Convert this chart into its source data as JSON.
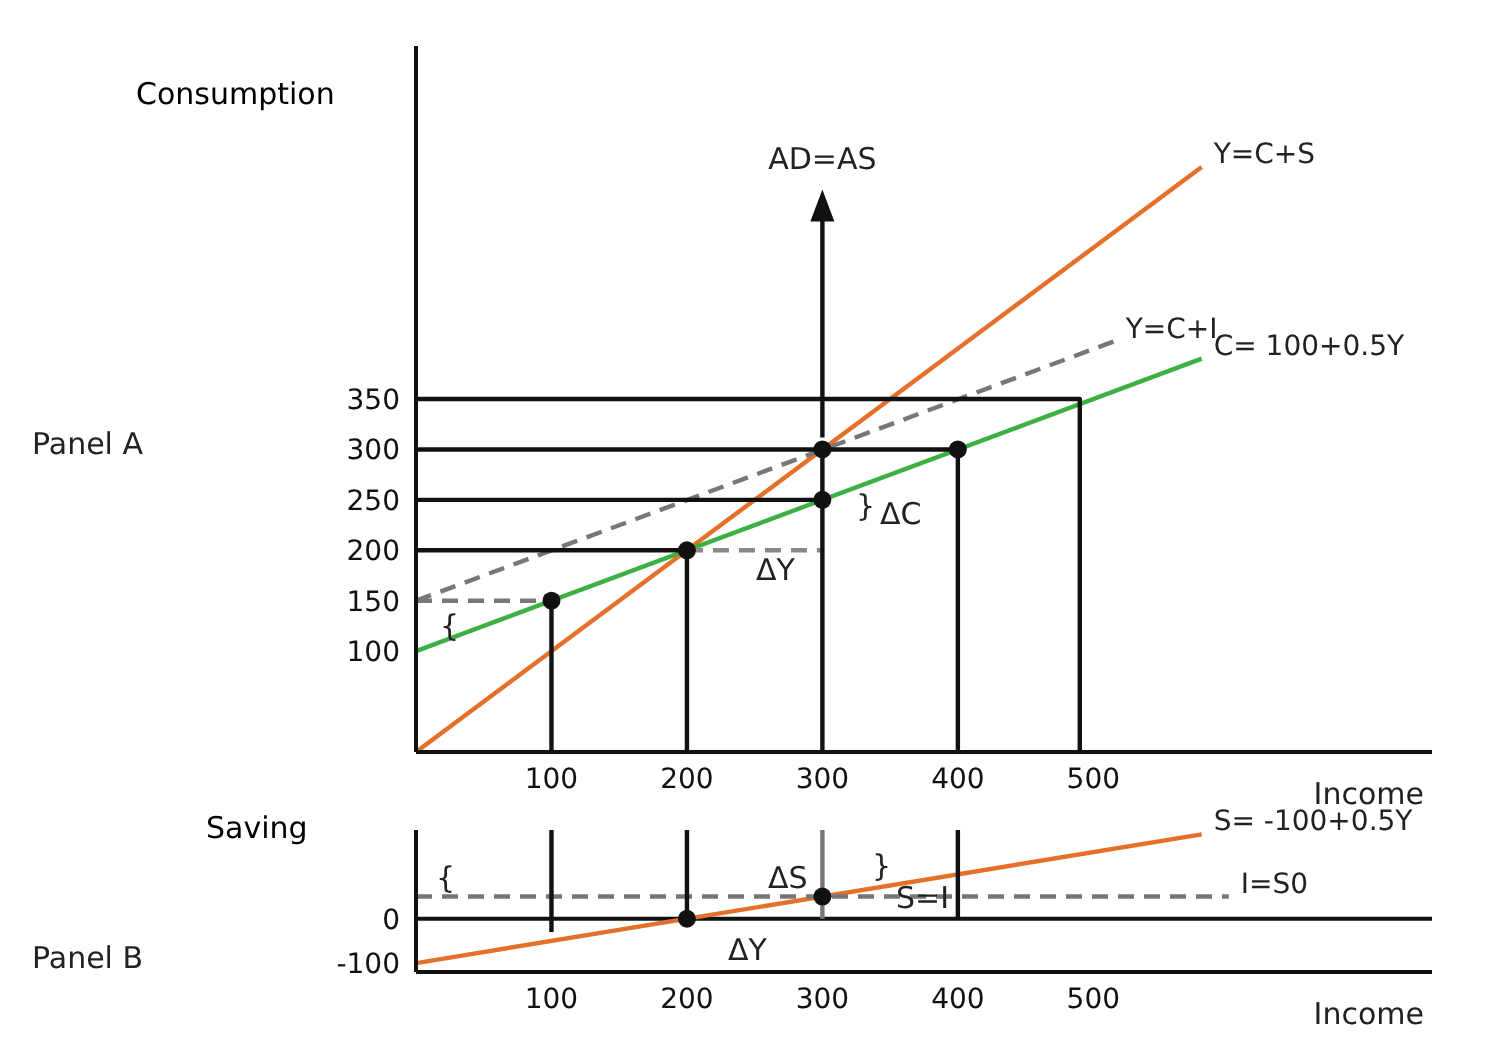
{
  "chart_data": [
    {
      "type": "line",
      "ylabel": "Consumption",
      "xlabel": "Income",
      "xlim": [
        0,
        750
      ],
      "ylim": [
        0,
        700
      ],
      "xticks": [
        100,
        200,
        300,
        400,
        500
      ],
      "yticks": [
        100,
        150,
        200,
        250,
        300,
        350
      ],
      "series": [
        {
          "name": "Y=C+S",
          "color": "#e5702a",
          "x": [
            0,
            580
          ],
          "values": [
            0,
            580
          ]
        },
        {
          "name": "Y=C+I",
          "color": "#777777",
          "line_style": "dashed",
          "x": [
            0,
            515
          ],
          "values": [
            150,
            407
          ]
        },
        {
          "name": "C= 100+0.5Y",
          "color": "#3cb043",
          "x": [
            0,
            580
          ],
          "values": [
            100,
            390
          ]
        },
        {
          "color": "#111111",
          "x": [
            0,
            490,
            490
          ],
          "values": [
            350,
            350,
            0
          ]
        },
        {
          "color": "#111111",
          "x": [
            0,
            400
          ],
          "values": [
            300,
            300
          ]
        },
        {
          "color": "#111111",
          "x": [
            0,
            300
          ],
          "values": [
            250,
            250
          ]
        },
        {
          "color": "#111111",
          "x": [
            0,
            200
          ],
          "values": [
            200,
            200
          ]
        },
        {
          "color": "#888888",
          "line_style": "dashed",
          "x": [
            200,
            300
          ],
          "values": [
            200,
            200
          ]
        },
        {
          "color": "#777777",
          "line_style": "dashed",
          "x": [
            0,
            100
          ],
          "values": [
            150,
            150
          ]
        },
        {
          "color": "#111111",
          "x": [
            100,
            100
          ],
          "values": [
            150,
            0
          ]
        },
        {
          "color": "#111111",
          "x": [
            200,
            200
          ],
          "values": [
            200,
            0
          ]
        },
        {
          "color": "#111111",
          "x": [
            300,
            300
          ],
          "values": [
            0,
            300
          ]
        },
        {
          "color": "#111111",
          "x": [
            400,
            400
          ],
          "values": [
            300,
            0
          ]
        },
        {
          "type": "scatter",
          "marker": "circle",
          "color": "#111111",
          "x": [
            100,
            200,
            300,
            300,
            400
          ],
          "values": [
            150,
            200,
            300,
            250,
            300
          ]
        }
      ],
      "annotations": [
        "Panel A",
        {
          "text": "AD=AS",
          "x": 300,
          "y": 300
        },
        "ΔC",
        "ΔY",
        "}",
        "{"
      ]
    },
    {
      "type": "line",
      "ylabel": "Saving",
      "xlabel": "Income",
      "xlim": [
        0,
        750
      ],
      "ylim": [
        -120,
        200
      ],
      "xticks": [
        100,
        200,
        300,
        400,
        500
      ],
      "yticks": [
        -100,
        0
      ],
      "ref_lines": [
        {
          "axis": "y",
          "value": 0,
          "color": "#111111"
        }
      ],
      "series": [
        {
          "name": "S= -100+0.5Y",
          "color": "#e5702a",
          "x": [
            0,
            580
          ],
          "values": [
            -100,
            190
          ]
        },
        {
          "name": "I=S0",
          "color": "#777777",
          "line_style": "dashed",
          "x": [
            0,
            600
          ],
          "values": [
            50,
            50
          ]
        },
        {
          "color": "#111111",
          "x": [
            100,
            100
          ],
          "values": [
            -30,
            200
          ]
        },
        {
          "color": "#111111",
          "x": [
            200,
            200
          ],
          "values": [
            0,
            200
          ]
        },
        {
          "color": "#777777",
          "x": [
            300,
            300
          ],
          "values": [
            0,
            200
          ]
        },
        {
          "color": "#111111",
          "x": [
            400,
            400
          ],
          "values": [
            0,
            200
          ]
        },
        {
          "type": "scatter",
          "marker": "circle",
          "color": "#111111",
          "x": [
            200,
            300
          ],
          "values": [
            0,
            50
          ]
        }
      ],
      "annotations": [
        "Panel B",
        "ΔY",
        "ΔS",
        "S=I",
        "}",
        "{"
      ]
    }
  ]
}
